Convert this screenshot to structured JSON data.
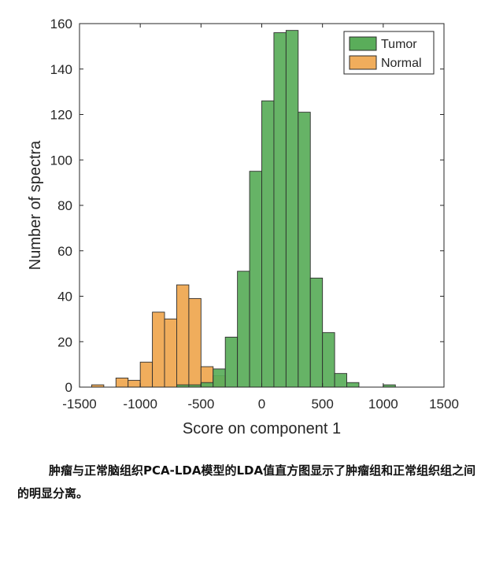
{
  "chart_data": {
    "type": "bar",
    "xlabel": "Score on component 1",
    "ylabel": "Number of spectra",
    "xlim": [
      -1500,
      1500
    ],
    "ylim": [
      0,
      160
    ],
    "x_ticks": [
      -1500,
      -1000,
      -500,
      0,
      500,
      1000,
      1500
    ],
    "x_tick_labels": [
      "-1500",
      "-1000",
      "-500",
      "0",
      "500",
      "1000",
      "1500"
    ],
    "y_ticks": [
      0,
      20,
      40,
      60,
      80,
      100,
      120,
      140,
      160
    ],
    "y_tick_labels": [
      "0",
      "20",
      "40",
      "60",
      "80",
      "100",
      "120",
      "140",
      "160"
    ],
    "grid": false,
    "legend_position": "top-right",
    "bin_width": 100,
    "series": [
      {
        "name": "Tumor",
        "color": "#5aad5a",
        "bins": [
          {
            "x0": -700,
            "x1": -600,
            "count": 1
          },
          {
            "x0": -600,
            "x1": -500,
            "count": 1
          },
          {
            "x0": -500,
            "x1": -400,
            "count": 2
          },
          {
            "x0": -400,
            "x1": -300,
            "count": 8
          },
          {
            "x0": -300,
            "x1": -200,
            "count": 22
          },
          {
            "x0": -200,
            "x1": -100,
            "count": 51
          },
          {
            "x0": -100,
            "x1": 0,
            "count": 95
          },
          {
            "x0": 0,
            "x1": 100,
            "count": 126
          },
          {
            "x0": 100,
            "x1": 200,
            "count": 156
          },
          {
            "x0": 200,
            "x1": 300,
            "count": 157
          },
          {
            "x0": 300,
            "x1": 400,
            "count": 121
          },
          {
            "x0": 400,
            "x1": 500,
            "count": 48
          },
          {
            "x0": 500,
            "x1": 600,
            "count": 24
          },
          {
            "x0": 600,
            "x1": 700,
            "count": 6
          },
          {
            "x0": 700,
            "x1": 800,
            "count": 2
          },
          {
            "x0": 1000,
            "x1": 1100,
            "count": 1
          }
        ]
      },
      {
        "name": "Normal",
        "color": "#f0ad5c",
        "bins": [
          {
            "x0": -1400,
            "x1": -1300,
            "count": 1
          },
          {
            "x0": -1200,
            "x1": -1100,
            "count": 4
          },
          {
            "x0": -1100,
            "x1": -1000,
            "count": 3
          },
          {
            "x0": -1000,
            "x1": -900,
            "count": 11
          },
          {
            "x0": -900,
            "x1": -800,
            "count": 33
          },
          {
            "x0": -800,
            "x1": -700,
            "count": 30
          },
          {
            "x0": -700,
            "x1": -600,
            "count": 45
          },
          {
            "x0": -600,
            "x1": -500,
            "count": 39
          },
          {
            "x0": -500,
            "x1": -400,
            "count": 9
          },
          {
            "x0": -400,
            "x1": -300,
            "count": 5
          }
        ]
      }
    ]
  },
  "caption": "肿瘤与正常脑组织PCA-LDA模型的LDA值直方图显示了肿瘤组和正常组织组之间的明显分离。"
}
